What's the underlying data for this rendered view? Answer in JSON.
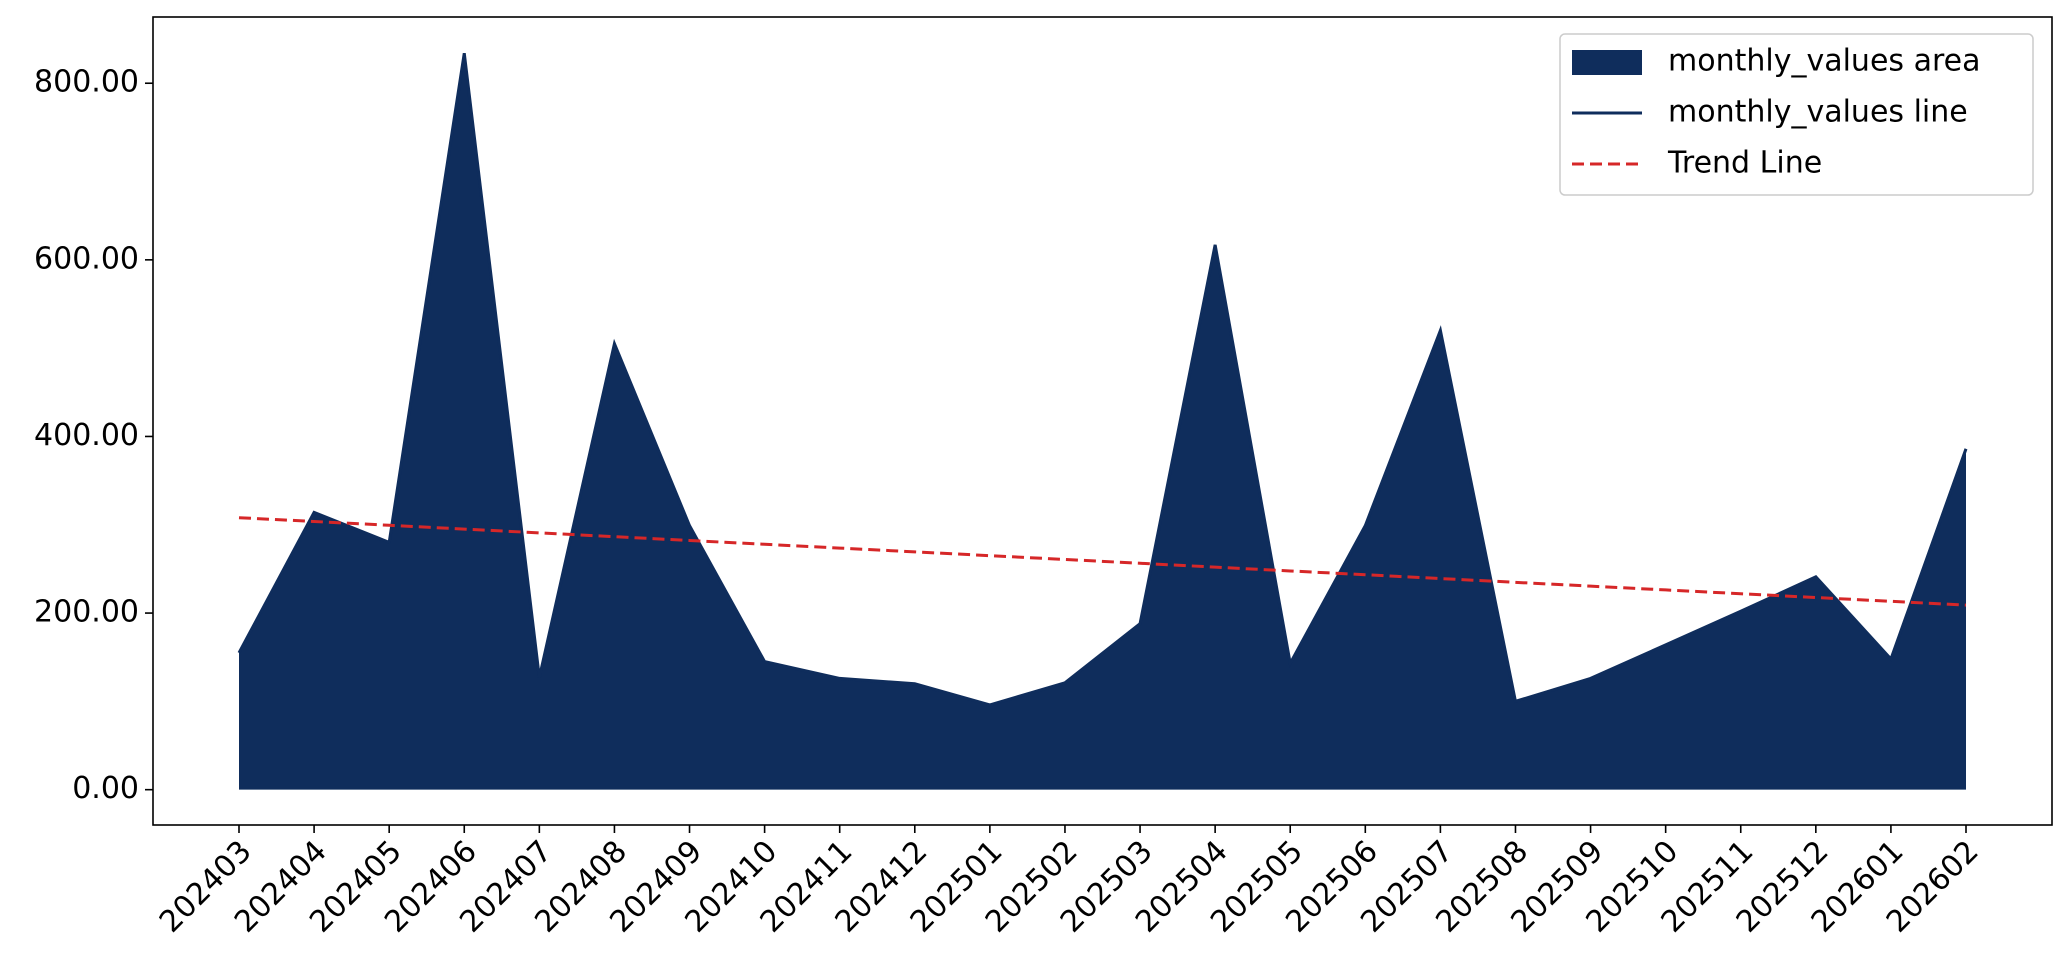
{
  "chart_data": {
    "type": "area",
    "categories": [
      "202403",
      "202404",
      "202405",
      "202406",
      "202407",
      "202408",
      "202409",
      "202410",
      "202411",
      "202412",
      "202501",
      "202502",
      "202503",
      "202504",
      "202505",
      "202506",
      "202507",
      "202508",
      "202509",
      "202510",
      "202511",
      "202512",
      "202601",
      "202602"
    ],
    "series": [
      {
        "name": "monthly_values area",
        "color": "#0f2d5c",
        "values": [
          155,
          314,
          280,
          834,
          127,
          505,
          299,
          145,
          126,
          120,
          96,
          121,
          188,
          617,
          143,
          299,
          520,
          100,
          126,
          164,
          202,
          241,
          148,
          386
        ]
      },
      {
        "name": "monthly_values line",
        "color": "#0f2d5c",
        "values": [
          155,
          314,
          280,
          834,
          127,
          505,
          299,
          145,
          126,
          120,
          96,
          121,
          188,
          617,
          143,
          299,
          520,
          100,
          126,
          164,
          202,
          241,
          148,
          386
        ]
      },
      {
        "name": "Trend Line",
        "color": "#d62728",
        "dashed": true,
        "values": [
          308,
          303.7,
          299.4,
          295.1,
          290.8,
          286.5,
          282.2,
          277.9,
          273.6,
          269.3,
          265.0,
          260.7,
          256.4,
          252.0,
          247.7,
          243.4,
          239.1,
          234.8,
          230.5,
          226.2,
          221.9,
          217.6,
          213.3,
          209.0
        ]
      }
    ],
    "ylim": [
      -40,
      875
    ],
    "yticks": [
      {
        "value": 0,
        "label": "0.00"
      },
      {
        "value": 200,
        "label": "200.00"
      },
      {
        "value": 400,
        "label": "400.00"
      },
      {
        "value": 600,
        "label": "600.00"
      },
      {
        "value": 800,
        "label": "800.00"
      }
    ],
    "legend": "upper right",
    "grid": false
  }
}
